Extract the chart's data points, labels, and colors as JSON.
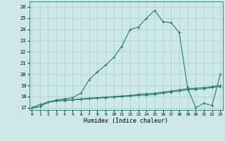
{
  "xlabel": "Humidex (Indice chaleur)",
  "x_values": [
    0,
    1,
    2,
    3,
    4,
    5,
    6,
    7,
    8,
    9,
    10,
    11,
    12,
    13,
    14,
    15,
    16,
    17,
    18,
    19,
    20,
    21,
    22,
    23
  ],
  "line1": [
    17,
    17.1,
    17.5,
    17.6,
    17.7,
    17.7,
    17.8,
    17.85,
    17.9,
    17.95,
    18.0,
    18.05,
    18.1,
    18.2,
    18.25,
    18.3,
    18.4,
    18.5,
    18.6,
    18.7,
    18.75,
    18.8,
    18.9,
    19.0
  ],
  "line2": [
    17,
    17.1,
    17.5,
    17.6,
    17.65,
    17.7,
    17.75,
    17.8,
    17.85,
    17.9,
    17.95,
    18.0,
    18.05,
    18.1,
    18.15,
    18.2,
    18.3,
    18.4,
    18.5,
    18.6,
    18.65,
    18.7,
    18.8,
    18.9
  ],
  "line3_y": [
    17,
    17.3,
    17.5,
    17.7,
    17.8,
    17.9,
    18.3,
    19.5,
    20.2,
    20.8,
    21.5,
    22.5,
    24.0,
    24.2,
    25.0,
    25.7,
    24.7,
    24.6,
    23.7,
    18.8,
    17.0,
    17.4,
    17.2,
    20.0
  ],
  "bg_color": "#cce8e8",
  "line_color": "#2a7a6a",
  "grid_color": "#aacece",
  "ylim": [
    16.8,
    26.5
  ],
  "xlim": [
    -0.3,
    23.3
  ],
  "yticks": [
    17,
    18,
    19,
    20,
    21,
    22,
    23,
    24,
    25,
    26
  ],
  "xticks": [
    0,
    1,
    2,
    3,
    4,
    5,
    6,
    7,
    8,
    9,
    10,
    11,
    12,
    13,
    14,
    15,
    16,
    17,
    18,
    19,
    20,
    21,
    22,
    23
  ]
}
